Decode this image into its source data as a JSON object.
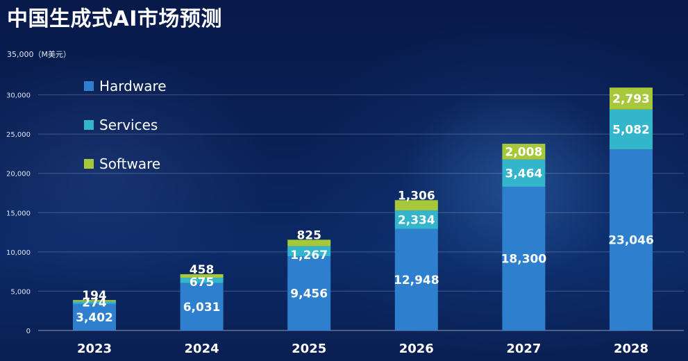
{
  "title": "中国生成式AI市场预测",
  "unit_label": "35,000（M美元）",
  "colors": {
    "hardware": "#2e7fcd",
    "services": "#33b5cb",
    "software": "#a6c83a"
  },
  "chart_data": {
    "type": "bar",
    "stacked": true,
    "categories": [
      "2023",
      "2024",
      "2025",
      "2026",
      "2027",
      "2028"
    ],
    "series": [
      {
        "name": "Hardware",
        "values": [
          3402,
          6031,
          9456,
          12948,
          18300,
          23046
        ],
        "value_labels": [
          "3,402",
          "6,031",
          "9,456",
          "12,948",
          "18,300",
          "23,046"
        ]
      },
      {
        "name": "Services",
        "values": [
          274,
          675,
          1267,
          2334,
          3464,
          5082
        ],
        "value_labels": [
          "274",
          "675",
          "1,267",
          "2,334",
          "3,464",
          "5,082"
        ]
      },
      {
        "name": "Software",
        "values": [
          194,
          458,
          825,
          1306,
          2008,
          2793
        ],
        "value_labels": [
          "194",
          "458",
          "825",
          "1,306",
          "2,008",
          "2,793"
        ]
      }
    ],
    "ylim": [
      0,
      35000
    ],
    "yticks": [
      0,
      5000,
      10000,
      15000,
      20000,
      25000,
      30000
    ],
    "ytick_labels": [
      "0",
      "5,000",
      "10,000",
      "15,000",
      "20,000",
      "25,000",
      "30,000"
    ],
    "grid": true,
    "legend_position": "top-left"
  }
}
